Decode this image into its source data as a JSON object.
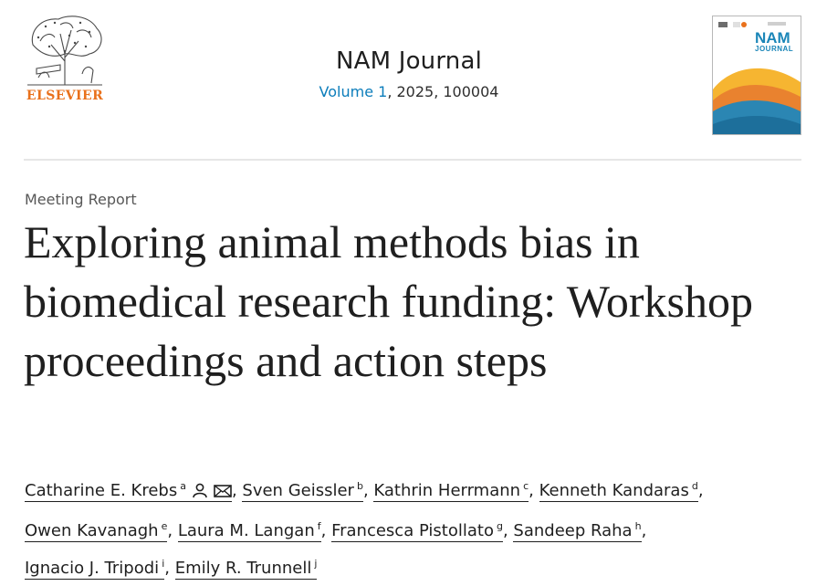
{
  "publisher": {
    "name": "ELSEVIER",
    "logo_icon": "elsevier-tree-logo"
  },
  "journal": {
    "name": "NAM Journal",
    "volume_label": "Volume 1",
    "year_and_article": ", 2025, 100004",
    "cover": {
      "title": "NAM",
      "subtitle": "JOURNAL"
    }
  },
  "article": {
    "type": "Meeting Report",
    "title": "Exploring animal methods bias in biomedical research funding: Workshop proceedings and action steps"
  },
  "authors": [
    {
      "name": "Catharine E. Krebs",
      "aff": "a",
      "icons": [
        "person-icon",
        "envelope-icon"
      ]
    },
    {
      "name": "Sven Geissler",
      "aff": "b"
    },
    {
      "name": "Kathrin Herrmann",
      "aff": "c"
    },
    {
      "name": "Kenneth Kandaras",
      "aff": "d"
    },
    {
      "name": "Owen Kavanagh",
      "aff": "e"
    },
    {
      "name": "Laura M. Langan",
      "aff": "f"
    },
    {
      "name": "Francesca Pistollato",
      "aff": "g"
    },
    {
      "name": "Sandeep Raha",
      "aff": "h"
    },
    {
      "name": "Ignacio J. Tripodi",
      "aff": "i"
    },
    {
      "name": "Emily R. Trunnell",
      "aff": "j"
    }
  ],
  "colors": {
    "publisher_orange": "#e9711c",
    "link_blue": "#0c7dbb",
    "text": "#1f1f1f"
  }
}
